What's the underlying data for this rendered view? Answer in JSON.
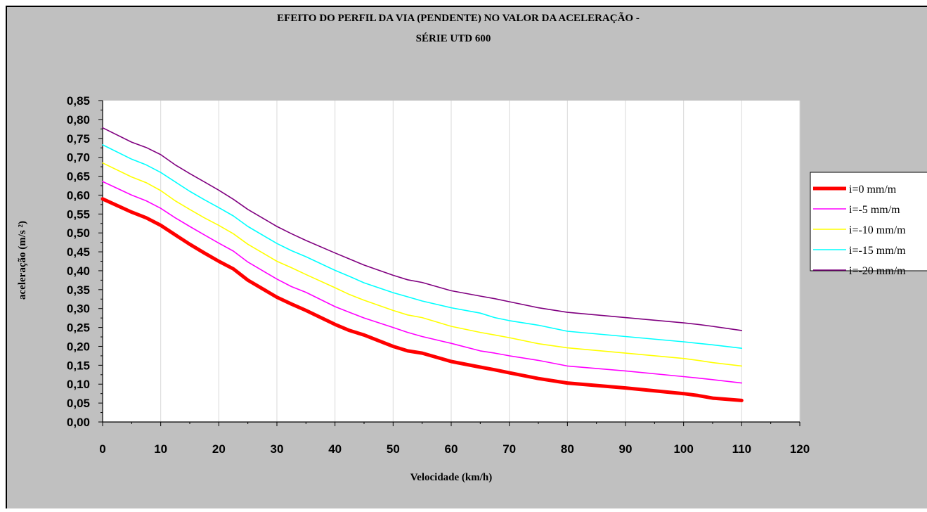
{
  "chart_data": {
    "type": "line",
    "title_line1": "EFEITO DO PERFIL DA VIA (PENDENTE) NO VALOR DA ACELERAÇÃO -",
    "title_line2": "SÉRIE UTD 600",
    "xlabel": "Velocidade (km/h)",
    "ylabel": "aceleração (m/s ²)",
    "xlim": [
      0,
      120
    ],
    "ylim": [
      0,
      0.85
    ],
    "xticks": [
      "0",
      "10",
      "20",
      "30",
      "40",
      "50",
      "60",
      "70",
      "80",
      "90",
      "100",
      "110",
      "120"
    ],
    "yticks": [
      "0,00",
      "0,05",
      "0,10",
      "0,15",
      "0,20",
      "0,25",
      "0,30",
      "0,35",
      "0,40",
      "0,45",
      "0,50",
      "0,55",
      "0,60",
      "0,65",
      "0,70",
      "0,75",
      "0,80",
      "0,85"
    ],
    "grid": "vertical",
    "legend_position": "right",
    "x": [
      0,
      5,
      7.5,
      10,
      12.5,
      15,
      17.5,
      20,
      22.5,
      25,
      30,
      32.5,
      35,
      40,
      42.5,
      45,
      50,
      52.5,
      55,
      60,
      65,
      67.5,
      70,
      75,
      80,
      90,
      100,
      102.5,
      105,
      110
    ],
    "series": [
      {
        "name": "i=0 mm/m",
        "color": "#ff0000",
        "width": 5,
        "values": [
          0.59,
          0.555,
          0.54,
          0.52,
          0.495,
          0.47,
          0.447,
          0.425,
          0.405,
          0.375,
          0.33,
          0.312,
          0.295,
          0.258,
          0.242,
          0.23,
          0.2,
          0.188,
          0.182,
          0.16,
          0.145,
          0.138,
          0.13,
          0.115,
          0.103,
          0.09,
          0.075,
          0.07,
          0.063,
          0.057
        ]
      },
      {
        "name": "i=-5 mm/m",
        "color": "#ff00ff",
        "width": 1.6,
        "values": [
          0.636,
          0.6,
          0.585,
          0.565,
          0.54,
          0.517,
          0.495,
          0.473,
          0.452,
          0.423,
          0.378,
          0.358,
          0.343,
          0.305,
          0.29,
          0.275,
          0.25,
          0.237,
          0.226,
          0.208,
          0.188,
          0.182,
          0.175,
          0.163,
          0.148,
          0.135,
          0.12,
          0.116,
          0.112,
          0.103
        ]
      },
      {
        "name": "i=-10 mm/m",
        "color": "#ffff00",
        "width": 1.6,
        "values": [
          0.685,
          0.648,
          0.633,
          0.612,
          0.585,
          0.562,
          0.54,
          0.52,
          0.498,
          0.47,
          0.425,
          0.408,
          0.39,
          0.355,
          0.337,
          0.322,
          0.295,
          0.283,
          0.276,
          0.253,
          0.237,
          0.23,
          0.223,
          0.207,
          0.196,
          0.182,
          0.168,
          0.163,
          0.157,
          0.148
        ]
      },
      {
        "name": "i=-15 mm/m",
        "color": "#00ffff",
        "width": 1.6,
        "values": [
          0.733,
          0.695,
          0.68,
          0.66,
          0.635,
          0.61,
          0.588,
          0.567,
          0.545,
          0.517,
          0.472,
          0.453,
          0.437,
          0.401,
          0.385,
          0.368,
          0.342,
          0.331,
          0.32,
          0.302,
          0.288,
          0.276,
          0.268,
          0.256,
          0.24,
          0.226,
          0.212,
          0.208,
          0.204,
          0.195
        ]
      },
      {
        "name": "i=-20 mm/m",
        "color": "#800080",
        "width": 1.6,
        "values": [
          0.778,
          0.74,
          0.726,
          0.707,
          0.68,
          0.657,
          0.635,
          0.613,
          0.589,
          0.562,
          0.517,
          0.498,
          0.48,
          0.447,
          0.431,
          0.415,
          0.388,
          0.376,
          0.369,
          0.347,
          0.333,
          0.326,
          0.318,
          0.302,
          0.29,
          0.276,
          0.262,
          0.258,
          0.253,
          0.242
        ]
      }
    ]
  }
}
